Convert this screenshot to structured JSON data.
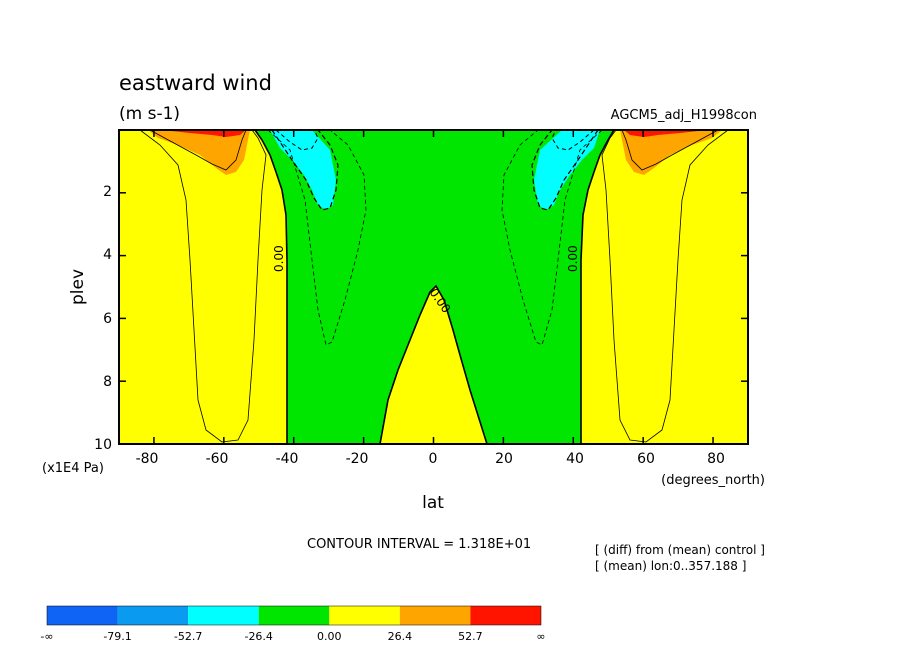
{
  "chart_data": {
    "type": "contour",
    "title": "eastward wind",
    "units": "(m s-1)",
    "experiment": "AGCM5_adj_H1998con",
    "xlabel": "lat",
    "x_units": "(degrees_north)",
    "ylabel": "plev",
    "y_units": "(x1E4 Pa)",
    "xlim": [
      -90,
      90
    ],
    "ylim": [
      10,
      0
    ],
    "x_ticks": [
      "-80",
      "-60",
      "-40",
      "-20",
      "0",
      "20",
      "40",
      "60",
      "80"
    ],
    "y_ticks": [
      "2",
      "4",
      "6",
      "8",
      "10"
    ],
    "contour_interval": "CONTOUR INTERVAL = 1.318E+01",
    "notes": [
      "[ (diff) from (mean) control ]",
      "[ (mean) lon:0..357.188 ]"
    ],
    "contour_labels": [
      "0.00",
      "0.00",
      "0.00"
    ],
    "colorbar": {
      "labels": [
        "-∞",
        "-79.1",
        "-52.7",
        "-26.4",
        "0.00",
        "26.4",
        "52.7",
        "∞"
      ],
      "colors": [
        "#0f64f5",
        "#0a9bf0",
        "#00ffff",
        "#00e600",
        "#ffff00",
        "#ffa500",
        "#ff1400"
      ]
    },
    "regions": [
      {
        "level": "0 to 26.4",
        "color": "#ffff00",
        "where": "background, poleward of about 42 degrees and equatorial lower levels"
      },
      {
        "level": "-26.4 to 0",
        "color": "#00e600",
        "where": "between about -42 and 41 degrees north"
      },
      {
        "level": "-52.7 to -26.4",
        "color": "#00ffff",
        "where": "upper levels near -30 and 30 degrees"
      },
      {
        "level": "26.4 to 52.7",
        "color": "#ffa500",
        "where": "upper levels near -60 and 60 degrees"
      },
      {
        "level": "> 52.7",
        "color": "#ff1400",
        "where": "top levels near -60 and 60 degrees"
      }
    ]
  }
}
